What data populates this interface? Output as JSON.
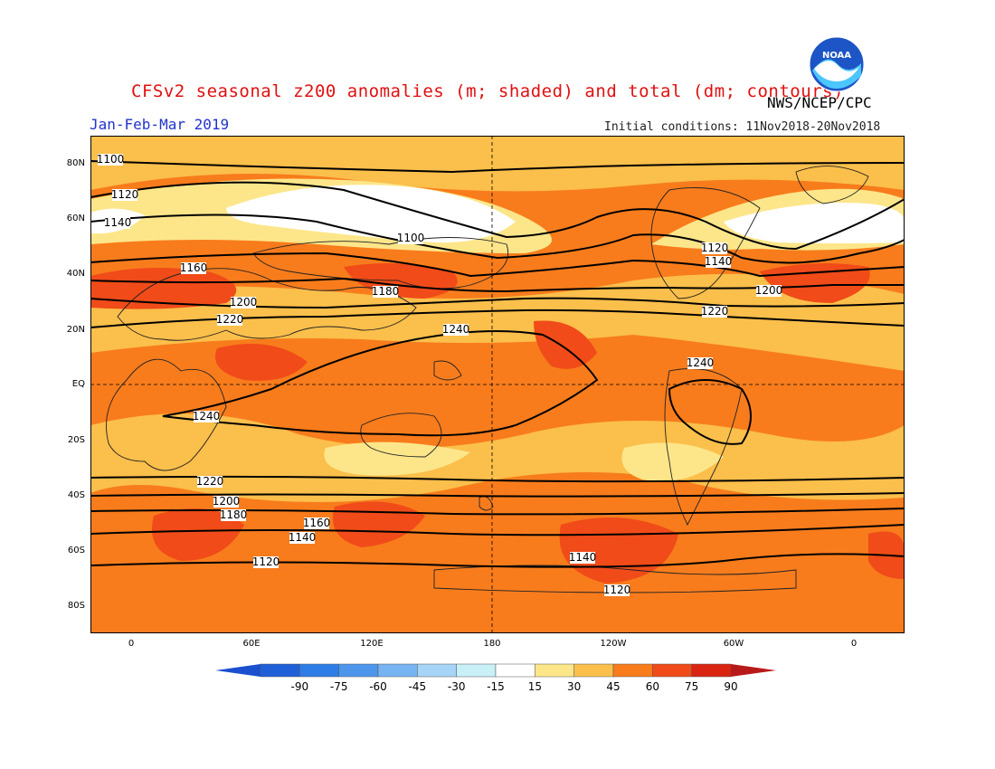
{
  "header": {
    "title": "CFSv2 seasonal z200 anomalies (m; shaded) and total (dm; contours)",
    "agency": "NWS/NCEP/CPC",
    "season": "Jan-Feb-Mar 2019",
    "initial_conditions": "Initial conditions: 11Nov2018-20Nov2018",
    "logo_text": "NOAA"
  },
  "map": {
    "lat_labels": [
      "80N",
      "60N",
      "40N",
      "20N",
      "EQ",
      "20S",
      "40S",
      "60S",
      "80S"
    ],
    "lon_labels": [
      "0",
      "60E",
      "120E",
      "180",
      "120W",
      "60W",
      "0"
    ],
    "contour_labels": [
      {
        "text": "1100",
        "row": "top"
      },
      {
        "text": "1120",
        "row": "top"
      },
      {
        "text": "1140",
        "row": "top"
      },
      {
        "text": "1160"
      },
      {
        "text": "1180"
      },
      {
        "text": "1200"
      },
      {
        "text": "1220"
      },
      {
        "text": "1240"
      }
    ],
    "colors": {
      "anom_15_30": "#fde68a",
      "anom_30_45": "#fbbf4b",
      "anom_45_60": "#f87c1c",
      "anom_60_75": "#f04b18",
      "anom_75_90": "#d92512",
      "neutral": "#ffffff",
      "contour": "#000000"
    }
  },
  "colorbar": {
    "ticks": [
      "-90",
      "-75",
      "-60",
      "-45",
      "-30",
      "-15",
      "15",
      "30",
      "45",
      "60",
      "75",
      "90"
    ],
    "colors": [
      "#1f5fd8",
      "#2e7de6",
      "#4d96ec",
      "#78b4f1",
      "#a6d4f6",
      "#c8f0f6",
      "#ffffff",
      "#fde68a",
      "#fbbf4b",
      "#f87c1c",
      "#f04b18",
      "#d92512"
    ],
    "end_low": "#1a4fcf",
    "end_high": "#b81a1a"
  }
}
